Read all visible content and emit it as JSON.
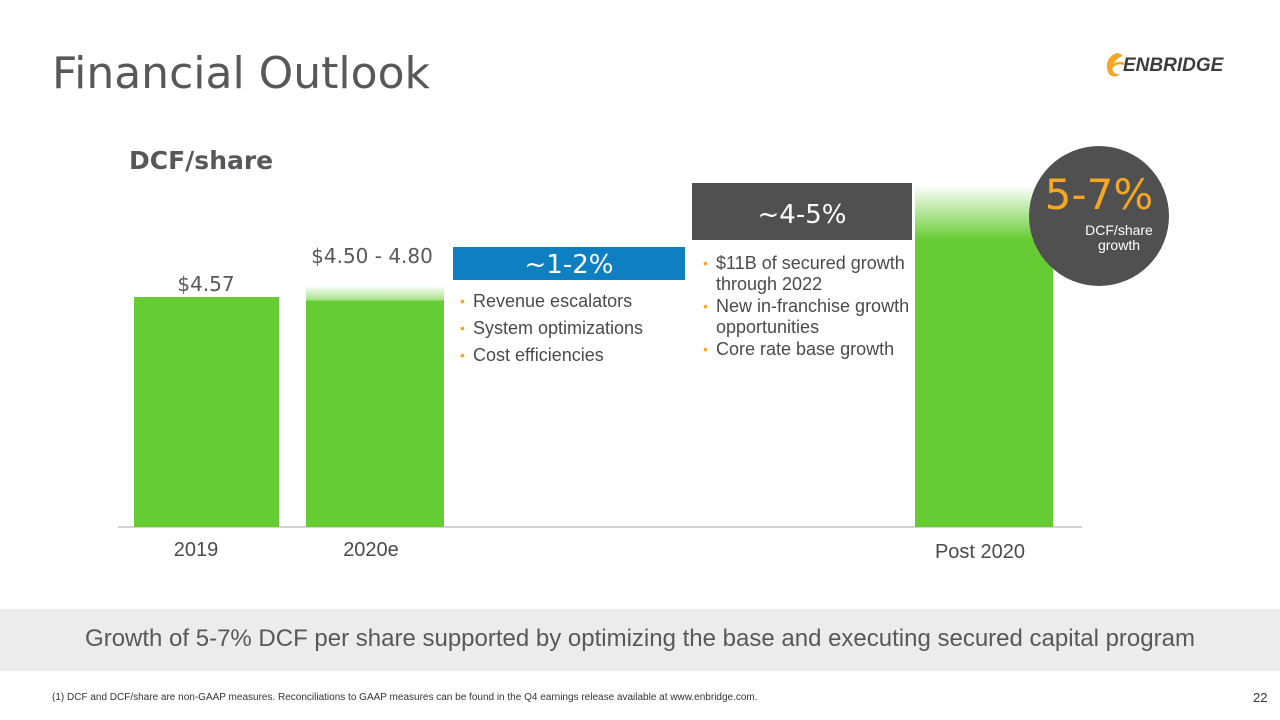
{
  "header": {
    "title": "Financial Outlook",
    "logo_text": "ENBRIDGE",
    "logo_color": "#f5a623"
  },
  "chart_data": {
    "type": "bar",
    "title": "DCF/share",
    "categories": [
      "2019",
      "2020e",
      "Post 2020"
    ],
    "values": [
      4.57,
      4.5,
      null
    ],
    "range_top": [
      null,
      4.8,
      null
    ],
    "value_labels": [
      "$4.57",
      "$4.50 - 4.80",
      ""
    ],
    "xlabel": "",
    "ylabel": "",
    "bar_color": "#66cc33",
    "growth_steps": [
      {
        "label": "~1-2%",
        "color": "#0e7fc0",
        "bullets": [
          "Revenue escalators",
          "System optimizations",
          "Cost efficiencies"
        ]
      },
      {
        "label": "~4-5%",
        "color": "#505050",
        "bullets": [
          "$11B of secured growth through 2022",
          "New in-franchise growth opportunities",
          "Core rate base growth"
        ]
      }
    ]
  },
  "callout": {
    "value": "5-7%",
    "subtitle": "DCF/share growth",
    "accent": "#f5a623"
  },
  "banner": {
    "text": "Growth of 5-7% DCF per share supported by optimizing the base and executing secured capital program"
  },
  "footnote": "(1) DCF and DCF/share are non-GAAP measures. Reconciliations to GAAP measures can be found in the Q4 earnings release available at www.enbridge.com.",
  "page_number": "22"
}
